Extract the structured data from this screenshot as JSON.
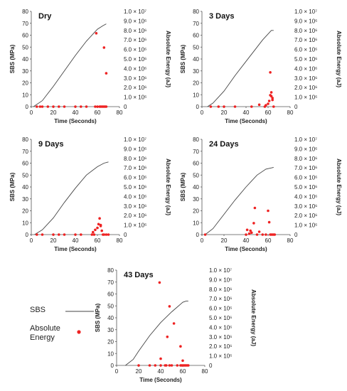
{
  "legend": {
    "sbs_label": "SBS",
    "energy_label": "Absolute Energy",
    "sbs_color": "#444444",
    "energy_color": "#ee2222"
  },
  "chart_data": [
    {
      "type": "line",
      "title": "Dry",
      "xlabel": "Time (Seconds)",
      "ylabel": "SBS (MPa)",
      "y2label": "Absolute Energy (aJ)",
      "xlim": [
        0,
        80
      ],
      "ylim": [
        0,
        80
      ],
      "y2lim": [
        0,
        10000000
      ],
      "xticks": [
        "0",
        "20",
        "40",
        "60",
        "80"
      ],
      "yticks": [
        "0",
        "10",
        "20",
        "30",
        "40",
        "50",
        "60",
        "70",
        "80"
      ],
      "y2ticks": [
        "0",
        "1.0 × 10⁶",
        "2.0 × 10⁶",
        "3.0 × 10⁶",
        "4.0 × 10⁶",
        "5.0 × 10⁶",
        "6.0 × 10⁶",
        "7.0 × 10⁶",
        "8.0 × 10⁶",
        "9.0 × 10⁶",
        "1.0 × 10⁷"
      ],
      "series": [
        {
          "name": "SBS",
          "x": [
            2,
            10,
            20,
            30,
            40,
            50,
            60,
            65,
            68
          ],
          "y": [
            0,
            5,
            17,
            30,
            43,
            55,
            65,
            68,
            69.5
          ]
        },
        {
          "name": "Absolute Energy",
          "x": [
            5,
            8,
            10,
            15,
            20,
            25,
            30,
            40,
            45,
            50,
            58,
            60,
            62,
            63,
            64,
            65,
            66,
            67,
            68,
            59,
            66,
            68
          ],
          "y": [
            0,
            0,
            0,
            0,
            0,
            0,
            0,
            0,
            0,
            0,
            0,
            0,
            0,
            0,
            0,
            0,
            0,
            0,
            0,
            7700000,
            6200000,
            3500000
          ]
        }
      ]
    },
    {
      "type": "line",
      "title": "3 Days",
      "xlabel": "Time (Seconds)",
      "ylabel": "SBS (MPa)",
      "y2label": "Absolute Energy (aJ)",
      "xlim": [
        0,
        80
      ],
      "ylim": [
        0,
        80
      ],
      "y2lim": [
        0,
        10000000
      ],
      "xticks": [
        "0",
        "20",
        "40",
        "60",
        "80"
      ],
      "yticks": [
        "0",
        "10",
        "20",
        "30",
        "40",
        "50",
        "60",
        "70",
        "80"
      ],
      "y2ticks": [
        "0",
        "1.0 × 10⁶",
        "2.0 × 10⁶",
        "3.0 × 10⁶",
        "4.0 × 10⁶",
        "5.0 × 10⁶",
        "6.0 × 10⁶",
        "7.0 × 10⁶",
        "8.0 × 10⁶",
        "9.0 × 10⁶",
        "1.0 × 10⁷"
      ],
      "series": [
        {
          "name": "SBS",
          "x": [
            5,
            10,
            20,
            30,
            40,
            50,
            55,
            60,
            63,
            65
          ],
          "y": [
            0,
            3,
            13,
            26,
            38,
            50,
            56,
            61,
            64,
            64
          ]
        },
        {
          "name": "Absolute Energy",
          "x": [
            8,
            15,
            20,
            30,
            45,
            52,
            57,
            58,
            60,
            61,
            62,
            62,
            63,
            63,
            64,
            64,
            65
          ],
          "y": [
            0,
            0,
            0,
            0,
            0,
            200000,
            0,
            150000,
            300000,
            600000,
            3600000,
            1200000,
            1500000,
            1100000,
            900000,
            700000,
            0
          ]
        }
      ]
    },
    {
      "type": "line",
      "title": "9 Days",
      "xlabel": "Time (Seconds)",
      "ylabel": "SBS (MPa)",
      "y2label": "Absolute Energy (aJ)",
      "xlim": [
        0,
        80
      ],
      "ylim": [
        0,
        80
      ],
      "y2lim": [
        0,
        10000000
      ],
      "xticks": [
        "0",
        "20",
        "40",
        "60",
        "80"
      ],
      "yticks": [
        "0",
        "10",
        "20",
        "30",
        "40",
        "50",
        "60",
        "70",
        "80"
      ],
      "y2ticks": [
        "0",
        "1.0 × 10⁶",
        "2.0 × 10⁶",
        "3.0 × 10⁶",
        "4.0 × 10⁶",
        "5.0 × 10⁶",
        "6.0 × 10⁶",
        "7.0 × 10⁶",
        "8.0 × 10⁶",
        "9.0 × 10⁶",
        "1.0 × 10⁷"
      ],
      "series": [
        {
          "name": "SBS",
          "x": [
            3,
            10,
            20,
            30,
            40,
            50,
            60,
            66,
            70
          ],
          "y": [
            0,
            4,
            14,
            27,
            39,
            50,
            57,
            60,
            61
          ]
        },
        {
          "name": "Absolute Energy",
          "x": [
            5,
            10,
            20,
            25,
            30,
            40,
            45,
            55,
            56,
            58,
            60,
            61,
            62,
            63,
            64,
            65,
            66,
            68,
            70,
            57,
            63
          ],
          "y": [
            0,
            0,
            0,
            0,
            0,
            0,
            0,
            0,
            250000,
            500000,
            700000,
            1100000,
            1700000,
            900000,
            400000,
            0,
            0,
            0,
            0,
            0,
            1000000
          ]
        }
      ]
    },
    {
      "type": "line",
      "title": "24 Days",
      "xlabel": "Time (Seconds)",
      "ylabel": "SBS (MPa)",
      "y2label": "Absolute Energy (aJ)",
      "xlim": [
        0,
        80
      ],
      "ylim": [
        0,
        80
      ],
      "y2lim": [
        0,
        10000000
      ],
      "xticks": [
        "0",
        "20",
        "40",
        "60",
        "80"
      ],
      "yticks": [
        "0",
        "10",
        "20",
        "30",
        "40",
        "50",
        "60",
        "70",
        "80"
      ],
      "y2ticks": [
        "0",
        "1.0 × 10⁶",
        "2.0 × 10⁶",
        "3.0 × 10⁶",
        "4.0 × 10⁶",
        "5.0 × 10⁶",
        "6.0 × 10⁶",
        "7.0 × 10⁶",
        "8.0 × 10⁶",
        "9.0 × 10⁶",
        "1.0 × 10⁷"
      ],
      "series": [
        {
          "name": "SBS",
          "x": [
            3,
            10,
            20,
            30,
            40,
            50,
            58,
            63,
            65
          ],
          "y": [
            0,
            5,
            17,
            29,
            40,
            50,
            55,
            56,
            56.5
          ]
        },
        {
          "name": "Absolute Energy",
          "x": [
            3,
            40,
            41,
            43,
            44,
            45,
            47,
            48,
            50,
            52,
            55,
            58,
            60,
            61,
            62,
            63,
            64,
            65,
            66
          ],
          "y": [
            0,
            0,
            500000,
            100000,
            400000,
            200000,
            1200000,
            2800000,
            0,
            300000,
            0,
            0,
            2500000,
            1300000,
            0,
            0,
            0,
            0,
            0
          ]
        }
      ]
    },
    {
      "type": "line",
      "title": "43 Days",
      "xlabel": "Time (Seconds)",
      "ylabel": "SBS (MPa)",
      "y2label": "Absolute Energy (aJ)",
      "xlim": [
        0,
        80
      ],
      "ylim": [
        0,
        80
      ],
      "y2lim": [
        0,
        10000000
      ],
      "xticks": [
        "0",
        "20",
        "40",
        "60",
        "80"
      ],
      "yticks": [
        "0",
        "10",
        "20",
        "30",
        "40",
        "50",
        "60",
        "70",
        "80"
      ],
      "y2ticks": [
        "0",
        "1.0 × 10⁶",
        "2.0 × 10⁶",
        "3.0 × 10⁶",
        "4.0 × 10⁶",
        "5.0 × 10⁶",
        "6.0 × 10⁶",
        "7.0 × 10⁶",
        "8.0 × 10⁶",
        "9.0 × 10⁶",
        "1.0 × 10⁷"
      ],
      "series": [
        {
          "name": "SBS",
          "x": [
            8,
            15,
            20,
            30,
            40,
            50,
            55,
            60,
            63,
            65
          ],
          "y": [
            0,
            5,
            12,
            25,
            36,
            45,
            49,
            53,
            54,
            54
          ]
        },
        {
          "name": "Absolute Energy",
          "x": [
            20,
            30,
            35,
            40,
            44,
            45,
            48,
            50,
            55,
            58,
            59,
            60,
            61,
            62,
            63,
            64,
            65,
            39,
            40,
            46,
            48,
            52,
            58,
            60
          ],
          "y": [
            0,
            0,
            0,
            0,
            0,
            0,
            0,
            0,
            0,
            0,
            0,
            0,
            0,
            0,
            0,
            0,
            0,
            8700000,
            700000,
            3000000,
            6200000,
            4400000,
            2000000,
            500000
          ]
        }
      ]
    }
  ]
}
